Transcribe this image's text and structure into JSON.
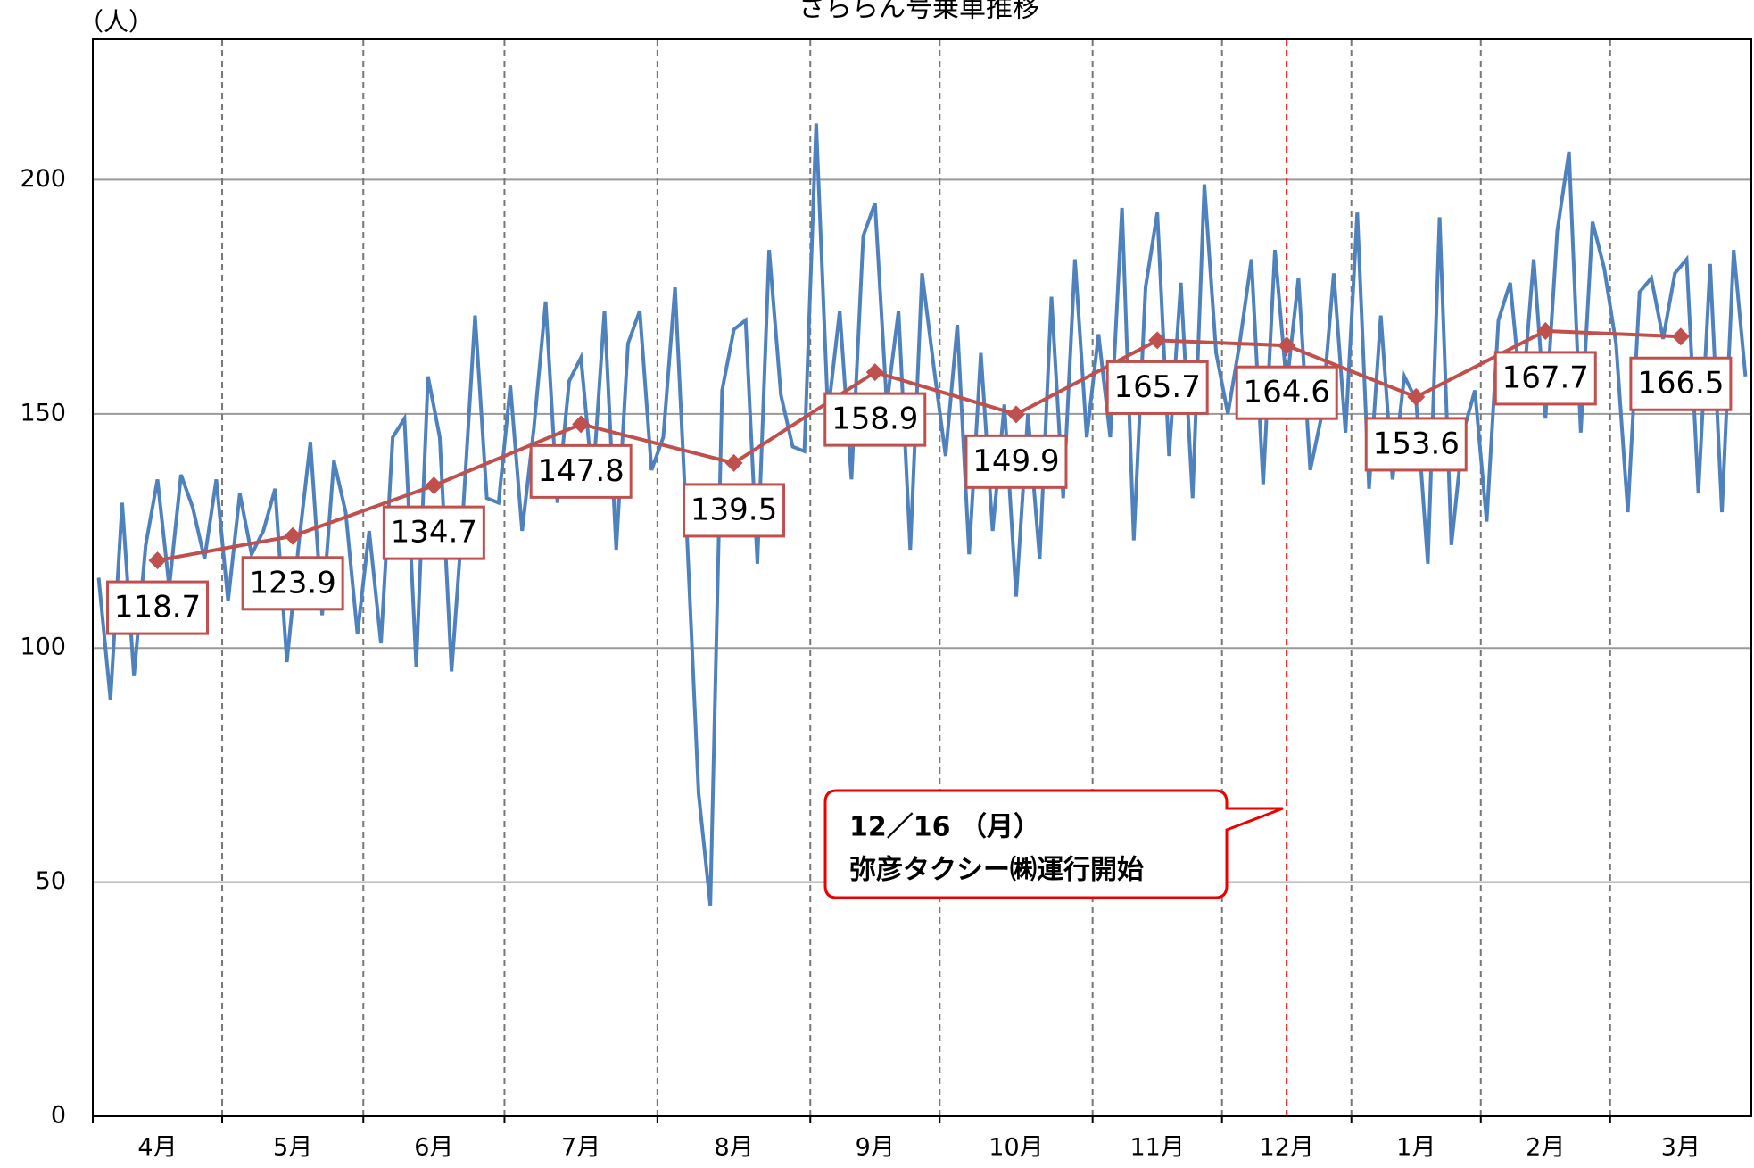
{
  "chart_data": {
    "type": "line",
    "title": "さららん号乗車推移",
    "y_label": "（人）",
    "categories": [
      "4月",
      "5月",
      "6月",
      "7月",
      "8月",
      "9月",
      "10月",
      "11月",
      "12月",
      "1月",
      "2月",
      "3月"
    ],
    "ylim": [
      0,
      230
    ],
    "yticks": [
      0,
      50,
      100,
      150,
      200
    ],
    "grid": true,
    "daily": {
      "color": "#4f81bd",
      "values": [
        [
          115,
          89,
          131,
          94,
          122,
          136,
          113,
          137,
          130,
          119,
          136
        ],
        [
          110,
          133,
          120,
          125,
          134,
          97,
          122,
          144,
          107,
          140,
          129,
          103
        ],
        [
          125,
          101,
          145,
          149,
          96,
          158,
          145,
          95,
          130,
          171,
          132,
          131
        ],
        [
          156,
          125,
          147,
          174,
          131,
          157,
          162,
          135,
          172,
          121,
          165,
          172,
          138
        ],
        [
          145,
          177,
          125,
          69,
          45,
          155,
          168,
          170,
          118,
          185,
          154,
          143,
          142
        ],
        [
          212,
          150,
          172,
          136,
          188,
          195,
          152,
          172,
          121,
          180,
          160
        ],
        [
          141,
          169,
          120,
          163,
          125,
          152,
          111,
          150,
          119,
          175,
          132,
          183,
          145
        ],
        [
          167,
          145,
          194,
          123,
          177,
          193,
          141,
          178,
          132,
          199,
          163
        ],
        [
          150,
          165,
          183,
          135,
          185,
          156,
          179,
          138,
          150,
          180,
          146
        ],
        [
          193,
          134,
          171,
          136,
          158,
          153,
          118,
          192,
          122,
          146,
          155
        ],
        [
          127,
          170,
          178,
          152,
          183,
          149,
          189,
          206,
          146,
          191,
          181
        ],
        [
          165,
          129,
          176,
          179,
          166,
          180,
          183,
          133,
          182,
          129,
          185,
          158
        ]
      ]
    },
    "average": {
      "color": "#c0504d",
      "values": [
        118.7,
        123.9,
        134.7,
        147.8,
        139.5,
        158.9,
        149.9,
        165.7,
        164.6,
        153.6,
        167.7,
        166.5
      ]
    },
    "annotation": {
      "date": "12／16 （月）",
      "text": "弥彦タクシー㈱運行開始",
      "month_index": 8
    }
  }
}
